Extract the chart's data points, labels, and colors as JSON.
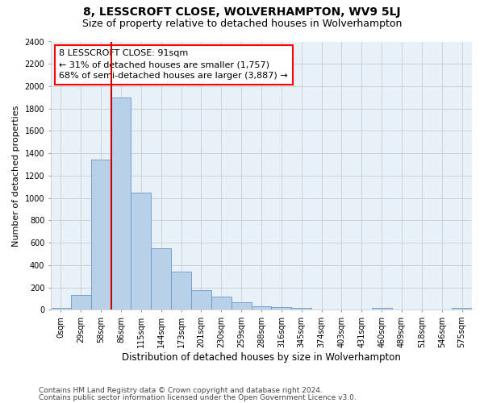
{
  "title": "8, LESSCROFT CLOSE, WOLVERHAMPTON, WV9 5LJ",
  "subtitle": "Size of property relative to detached houses in Wolverhampton",
  "xlabel": "Distribution of detached houses by size in Wolverhampton",
  "ylabel": "Number of detached properties",
  "footer_line1": "Contains HM Land Registry data © Crown copyright and database right 2024.",
  "footer_line2": "Contains public sector information licensed under the Open Government Licence v3.0.",
  "bar_labels": [
    "0sqm",
    "29sqm",
    "58sqm",
    "86sqm",
    "115sqm",
    "144sqm",
    "173sqm",
    "201sqm",
    "230sqm",
    "259sqm",
    "288sqm",
    "316sqm",
    "345sqm",
    "374sqm",
    "403sqm",
    "431sqm",
    "460sqm",
    "489sqm",
    "518sqm",
    "546sqm",
    "575sqm"
  ],
  "bar_values": [
    20,
    130,
    1340,
    1900,
    1050,
    550,
    340,
    175,
    115,
    65,
    30,
    25,
    20,
    0,
    0,
    0,
    20,
    0,
    0,
    0,
    20
  ],
  "bar_color": "#b8d0e8",
  "bar_edge_color": "#6699cc",
  "annotation_box_text_line1": "8 LESSCROFT CLOSE: 91sqm",
  "annotation_box_text_line2": "← 31% of detached houses are smaller (1,757)",
  "annotation_box_text_line3": "68% of semi-detached houses are larger (3,887) →",
  "vline_color": "#cc0000",
  "vline_x_bin": 3,
  "ylim": [
    0,
    2400
  ],
  "yticks": [
    0,
    200,
    400,
    600,
    800,
    1000,
    1200,
    1400,
    1600,
    1800,
    2000,
    2200,
    2400
  ],
  "grid_color": "#cccccc",
  "bg_color": "#e8f0f8",
  "title_fontsize": 10,
  "subtitle_fontsize": 9,
  "annotation_fontsize": 8,
  "tick_fontsize": 7,
  "xlabel_fontsize": 8.5,
  "ylabel_fontsize": 8,
  "footer_fontsize": 6.5
}
